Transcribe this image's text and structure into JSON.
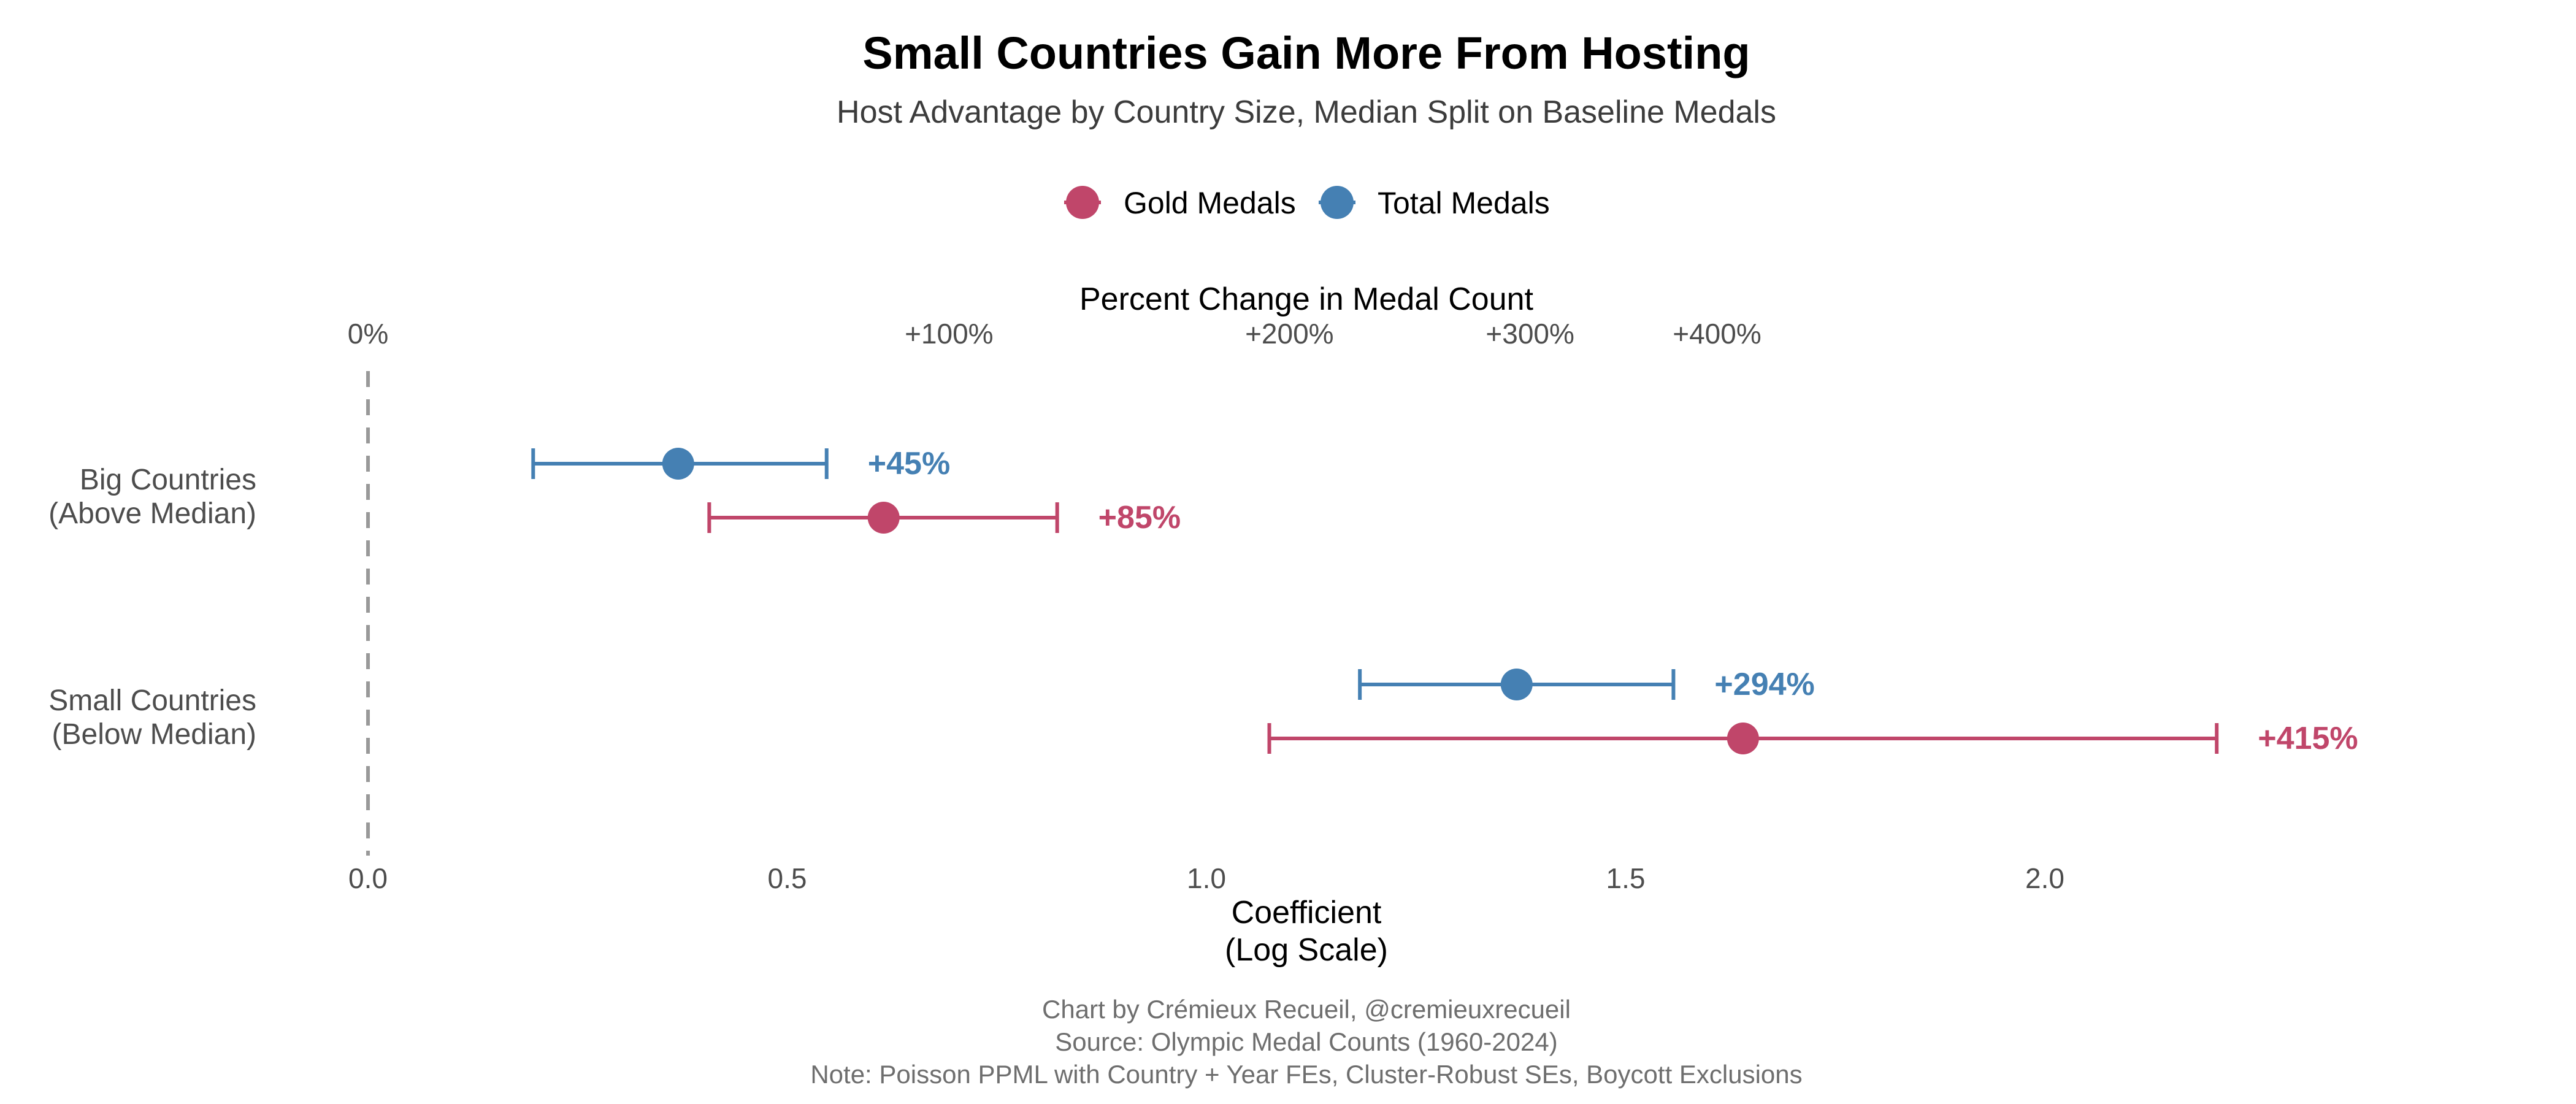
{
  "title": "Small Countries Gain More From Hosting",
  "subtitle": "Host Advantage by Country Size, Median Split on Baseline Medals",
  "legend": [
    {
      "label": "Gold Medals",
      "color": "#c0466a"
    },
    {
      "label": "Total Medals",
      "color": "#4580b3"
    }
  ],
  "top_axis": {
    "title": "Percent Change in Medal Count",
    "ticks": [
      {
        "coef": 0.0,
        "label": "0%"
      },
      {
        "coef": 0.693,
        "label": "+100%"
      },
      {
        "coef": 1.099,
        "label": "+200%"
      },
      {
        "coef": 1.386,
        "label": "+300%"
      },
      {
        "coef": 1.609,
        "label": "+400%"
      }
    ]
  },
  "caption": [
    "Chart by Crémieux Recueil, @cremieuxrecueil",
    "Source: Olympic Medal Counts (1960-2024)",
    "Note: Poisson PPML with Country + Year FEs, Cluster-Robust SEs, Boycott Exclusions"
  ],
  "chart_data": {
    "type": "scatter",
    "subtype": "coefficient-plot-with-error-bars",
    "xlabel": "Coefficient\n(Log Scale)",
    "xlabel_lines": [
      "Coefficient",
      "(Log Scale)"
    ],
    "xticks": [
      0.0,
      0.5,
      1.0,
      1.5,
      2.0
    ],
    "xtick_labels": [
      "0.0",
      "0.5",
      "1.0",
      "1.5",
      "2.0"
    ],
    "xlim": [
      -0.28,
      2.65
    ],
    "reference_line": 0.0,
    "categories": [
      {
        "label_lines": [
          "Big Countries",
          "(Above Median)"
        ]
      },
      {
        "label_lines": [
          "Small Countries",
          "(Below Median)"
        ]
      }
    ],
    "series": [
      {
        "name": "Total Medals",
        "color": "#4580b3",
        "points": [
          {
            "category": 0,
            "coef": 0.37,
            "ci": [
              0.197,
              0.547
            ],
            "label": "+45%"
          },
          {
            "category": 1,
            "coef": 1.37,
            "ci": [
              1.183,
              1.557
            ],
            "label": "+294%"
          }
        ]
      },
      {
        "name": "Gold Medals",
        "color": "#c0466a",
        "points": [
          {
            "category": 0,
            "coef": 0.615,
            "ci": [
              0.407,
              0.822
            ],
            "label": "+85%"
          },
          {
            "category": 1,
            "coef": 1.64,
            "ci": [
              1.075,
              2.205
            ],
            "label": "+415%"
          }
        ]
      }
    ],
    "grid": false,
    "legend_position": "top-center"
  }
}
